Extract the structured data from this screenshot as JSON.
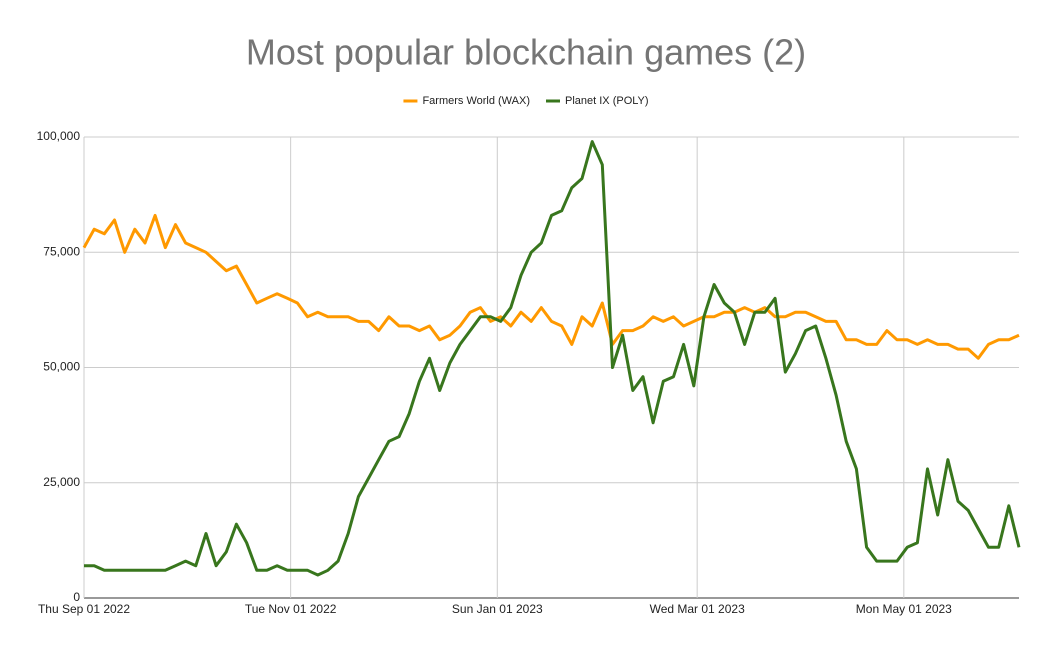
{
  "chart_data": {
    "type": "line",
    "title": "Most popular blockchain games (2)",
    "x": [
      "2022-09-01",
      "2022-09-04",
      "2022-09-07",
      "2022-09-10",
      "2022-09-13",
      "2022-09-16",
      "2022-09-19",
      "2022-09-22",
      "2022-09-25",
      "2022-09-28",
      "2022-10-01",
      "2022-10-04",
      "2022-10-07",
      "2022-10-10",
      "2022-10-13",
      "2022-10-16",
      "2022-10-19",
      "2022-10-22",
      "2022-10-25",
      "2022-10-28",
      "2022-10-31",
      "2022-11-03",
      "2022-11-06",
      "2022-11-09",
      "2022-11-12",
      "2022-11-15",
      "2022-11-18",
      "2022-11-21",
      "2022-11-24",
      "2022-11-27",
      "2022-11-30",
      "2022-12-03",
      "2022-12-06",
      "2022-12-09",
      "2022-12-12",
      "2022-12-15",
      "2022-12-18",
      "2022-12-21",
      "2022-12-24",
      "2022-12-27",
      "2022-12-30",
      "2023-01-02",
      "2023-01-05",
      "2023-01-08",
      "2023-01-11",
      "2023-01-14",
      "2023-01-17",
      "2023-01-20",
      "2023-01-23",
      "2023-01-26",
      "2023-01-29",
      "2023-02-01",
      "2023-02-04",
      "2023-02-07",
      "2023-02-10",
      "2023-02-13",
      "2023-02-16",
      "2023-02-19",
      "2023-02-22",
      "2023-02-25",
      "2023-02-28",
      "2023-03-03",
      "2023-03-06",
      "2023-03-09",
      "2023-03-12",
      "2023-03-15",
      "2023-03-18",
      "2023-03-21",
      "2023-03-24",
      "2023-03-27",
      "2023-03-30",
      "2023-04-02",
      "2023-04-05",
      "2023-04-08",
      "2023-04-11",
      "2023-04-14",
      "2023-04-17",
      "2023-04-20",
      "2023-04-23",
      "2023-04-26",
      "2023-04-29",
      "2023-05-02",
      "2023-05-05",
      "2023-05-08",
      "2023-05-11",
      "2023-05-14",
      "2023-05-17",
      "2023-05-20",
      "2023-05-23",
      "2023-05-26",
      "2023-05-29",
      "2023-06-01",
      "2023-06-04"
    ],
    "series": [
      {
        "name": "Farmers World (WAX)",
        "color": "#ff9900",
        "values": [
          76000,
          80000,
          79000,
          82000,
          75000,
          80000,
          77000,
          83000,
          76000,
          81000,
          77000,
          76000,
          75000,
          73000,
          71000,
          72000,
          68000,
          64000,
          65000,
          66000,
          65000,
          64000,
          61000,
          62000,
          61000,
          61000,
          61000,
          60000,
          60000,
          58000,
          61000,
          59000,
          59000,
          58000,
          59000,
          56000,
          57000,
          59000,
          62000,
          63000,
          60000,
          61000,
          59000,
          62000,
          60000,
          63000,
          60000,
          59000,
          55000,
          61000,
          59000,
          64000,
          55000,
          58000,
          58000,
          59000,
          61000,
          60000,
          61000,
          59000,
          60000,
          61000,
          61000,
          62000,
          62000,
          63000,
          62000,
          63000,
          61000,
          61000,
          62000,
          62000,
          61000,
          60000,
          60000,
          56000,
          56000,
          55000,
          55000,
          58000,
          56000,
          56000,
          55000,
          56000,
          55000,
          55000,
          54000,
          54000,
          52000,
          55000,
          56000,
          56000,
          57000
        ]
      },
      {
        "name": "Planet IX (POLY)",
        "color": "#38761d",
        "values": [
          7000,
          7000,
          6000,
          6000,
          6000,
          6000,
          6000,
          6000,
          6000,
          7000,
          8000,
          7000,
          14000,
          7000,
          10000,
          16000,
          12000,
          6000,
          6000,
          7000,
          6000,
          6000,
          6000,
          5000,
          6000,
          8000,
          14000,
          22000,
          26000,
          30000,
          34000,
          35000,
          40000,
          47000,
          52000,
          45000,
          51000,
          55000,
          58000,
          61000,
          61000,
          60000,
          63000,
          70000,
          75000,
          77000,
          83000,
          84000,
          89000,
          91000,
          99000,
          94000,
          50000,
          57000,
          45000,
          48000,
          38000,
          47000,
          48000,
          55000,
          46000,
          61000,
          68000,
          64000,
          62000,
          55000,
          62000,
          62000,
          65000,
          49000,
          53000,
          58000,
          59000,
          52000,
          44000,
          34000,
          28000,
          11000,
          8000,
          8000,
          8000,
          11000,
          12000,
          28000,
          18000,
          30000,
          21000,
          19000,
          15000,
          11000,
          11000,
          20000,
          11000
        ]
      }
    ],
    "xlim": [
      "2022-09-01",
      "2023-06-04"
    ],
    "xticks": [
      {
        "value": "2022-09-01",
        "label": "Thu Sep 01 2022"
      },
      {
        "value": "2022-11-01",
        "label": "Tue Nov 01 2022"
      },
      {
        "value": "2023-01-01",
        "label": "Sun Jan 01 2023"
      },
      {
        "value": "2023-03-01",
        "label": "Wed Mar 01 2023"
      },
      {
        "value": "2023-05-01",
        "label": "Mon May 01 2023"
      }
    ],
    "ylim": [
      0,
      100000
    ],
    "yticks": [
      0,
      {
        "value": 25000,
        "label": "25,000"
      },
      {
        "value": 50000,
        "label": "50,000"
      },
      {
        "value": 75000,
        "label": "75,000"
      },
      {
        "value": 100000,
        "label": "100,000"
      }
    ],
    "grid": true,
    "legend": "top"
  }
}
